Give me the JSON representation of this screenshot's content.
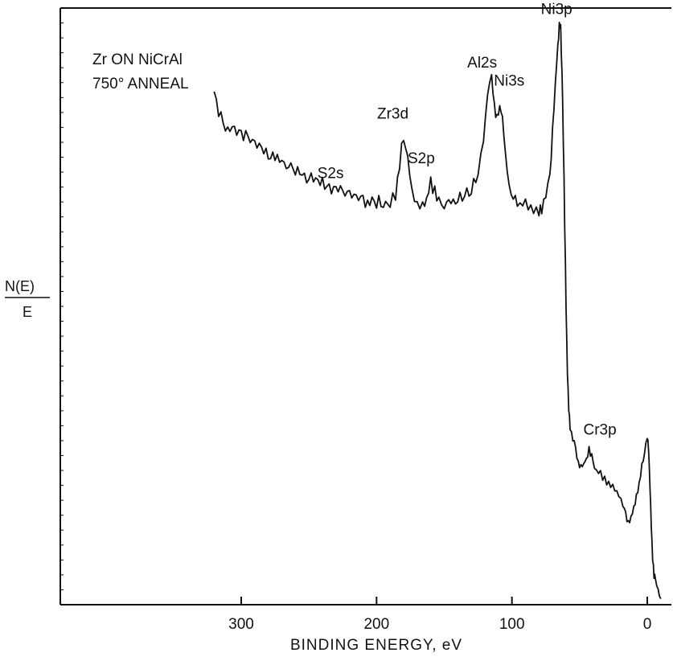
{
  "chart_data": {
    "type": "line",
    "title_lines": [
      "Zr ON NiCrAl",
      "750° ANNEAL"
    ],
    "xlabel": "BINDING ENERGY, eV",
    "ylabel_numerator": "N(E)",
    "ylabel_denominator": "E",
    "xlim": [
      320,
      -10
    ],
    "ylim": [
      0,
      1
    ],
    "xticks": [
      300,
      200,
      100,
      0
    ],
    "xtick_labels": [
      "300",
      "200",
      "100",
      "0"
    ],
    "grid": false,
    "series": [
      {
        "x": [
          320,
          315,
          310,
          305,
          300,
          295,
          290,
          285,
          280,
          275,
          270,
          265,
          260,
          255,
          250,
          245,
          240,
          235,
          230,
          225,
          220,
          215,
          210,
          205,
          200,
          195,
          190,
          186,
          183,
          180,
          177,
          174,
          170,
          166,
          163,
          160,
          157,
          154,
          150,
          145,
          140,
          135,
          130,
          125,
          121,
          118,
          115,
          113,
          111,
          109,
          107,
          105,
          102,
          99,
          96,
          92,
          88,
          84,
          80,
          78,
          75,
          72,
          70,
          68,
          66,
          65,
          64,
          63,
          62,
          61,
          60,
          59,
          58,
          57,
          55,
          53,
          51,
          49,
          47,
          45,
          43,
          41,
          39,
          36,
          33,
          30,
          27,
          24,
          21,
          18,
          16,
          14,
          12,
          10,
          8,
          6,
          4,
          2,
          0,
          -1,
          -2,
          -3,
          -4,
          -5,
          -6,
          -8,
          -10
        ],
        "y": [
          0.86,
          0.815,
          0.8,
          0.795,
          0.79,
          0.78,
          0.77,
          0.765,
          0.755,
          0.75,
          0.745,
          0.735,
          0.73,
          0.72,
          0.715,
          0.71,
          0.705,
          0.7,
          0.693,
          0.69,
          0.685,
          0.68,
          0.678,
          0.676,
          0.675,
          0.674,
          0.672,
          0.69,
          0.74,
          0.785,
          0.74,
          0.69,
          0.672,
          0.67,
          0.68,
          0.71,
          0.69,
          0.672,
          0.67,
          0.675,
          0.68,
          0.685,
          0.695,
          0.73,
          0.78,
          0.845,
          0.885,
          0.835,
          0.82,
          0.835,
          0.815,
          0.76,
          0.705,
          0.685,
          0.675,
          0.67,
          0.668,
          0.665,
          0.66,
          0.665,
          0.68,
          0.72,
          0.79,
          0.87,
          0.94,
          0.975,
          0.965,
          0.9,
          0.78,
          0.64,
          0.5,
          0.39,
          0.33,
          0.3,
          0.28,
          0.26,
          0.24,
          0.23,
          0.235,
          0.245,
          0.26,
          0.25,
          0.235,
          0.225,
          0.215,
          0.205,
          0.2,
          0.195,
          0.185,
          0.165,
          0.15,
          0.14,
          0.145,
          0.16,
          0.18,
          0.2,
          0.23,
          0.26,
          0.285,
          0.26,
          0.2,
          0.13,
          0.08,
          0.05,
          0.04,
          0.02,
          0.01
        ]
      }
    ],
    "annotations": [
      {
        "text": "Ni3p",
        "x": 67,
        "y": 0.99
      },
      {
        "text": "Al2s",
        "x": 122,
        "y": 0.9
      },
      {
        "text": "Ni3s",
        "x": 102,
        "y": 0.87
      },
      {
        "text": "Zr3d",
        "x": 188,
        "y": 0.815
      },
      {
        "text": "S2p",
        "x": 167,
        "y": 0.74
      },
      {
        "text": "S2s",
        "x": 234,
        "y": 0.715
      },
      {
        "text": "Cr3p",
        "x": 35,
        "y": 0.285
      }
    ]
  }
}
